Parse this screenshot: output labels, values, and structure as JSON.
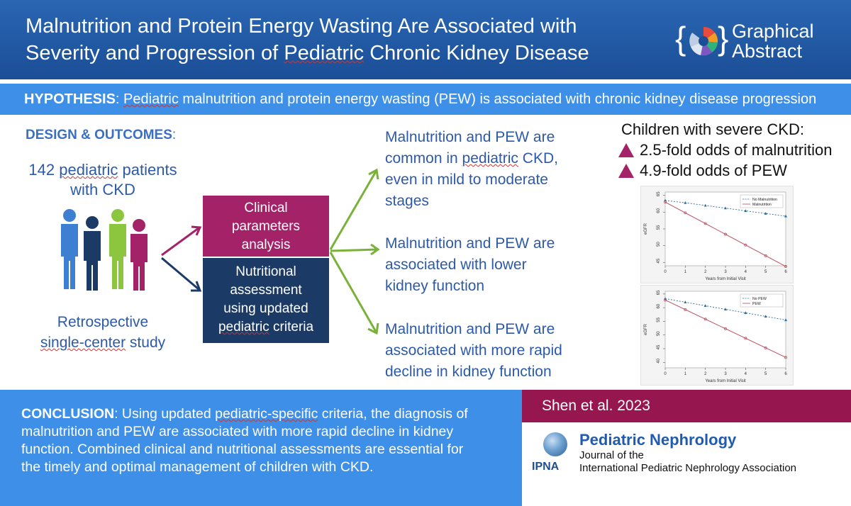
{
  "header": {
    "title_line1": "Malnutrition and Protein Energy Wasting Are Associated with",
    "title_line2_a": "Severity and Progression of ",
    "title_line2_u": "Pediatric",
    "title_line2_b": " Chronic Kidney Disease",
    "logo_line1": "Graphical",
    "logo_line2": "Abstract"
  },
  "hypothesis": {
    "label": "HYPOTHESIS",
    "sep": ": ",
    "u_word": "Pediatric",
    "text": " malnutrition and protein energy wasting (PEW) is associated with chronic kidney disease progression"
  },
  "design": {
    "label": "DESIGN & OUTCOMES",
    "colon": ":",
    "patients_a": "142 ",
    "patients_u": "pediatric",
    "patients_b": " patients",
    "patients_line2": "with CKD",
    "retro_line1": "Retrospective",
    "retro_u": "single-center",
    "retro_b": " study"
  },
  "boxes": {
    "clinical_l1": "Clinical",
    "clinical_l2": "parameters",
    "clinical_l3": "analysis",
    "nutr_l1": "Nutritional",
    "nutr_l2": "assessment",
    "nutr_l3": "using updated",
    "nutr_u": "pediatric",
    "nutr_l4b": " criteria"
  },
  "outcomes": {
    "o1_l1": "Malnutrition and PEW are",
    "o1_l2a": "common in ",
    "o1_l2u": "pediatric",
    "o1_l2b": " CKD,",
    "o1_l3": "even in mild to moderate",
    "o1_l4": "stages",
    "o2_l1": "Malnutrition and PEW are",
    "o2_l2": "associated with lower",
    "o2_l3": "kidney function",
    "o3_l1": "Malnutrition and PEW are",
    "o3_l2": "associated with more rapid",
    "o3_l3": "decline in kidney function"
  },
  "severe": {
    "heading": "Children with severe CKD:",
    "item1": "2.5-fold odds of malnutrition",
    "item2": "4.9-fold odds of PEW"
  },
  "chart_data": [
    {
      "type": "line",
      "xlabel": "Years from Initial Visit",
      "ylabel": "eGFR",
      "x": [
        0,
        1,
        2,
        3,
        4,
        5,
        6
      ],
      "xticks": [
        "0",
        "1",
        "2",
        "3",
        "4",
        "5",
        "6"
      ],
      "yticks": [
        "45",
        "50",
        "55",
        "60",
        "65"
      ],
      "ylim": [
        44,
        66
      ],
      "legend_position": "top-right",
      "series": [
        {
          "name": "No Malnutrition",
          "values": [
            63.5,
            62.8,
            62.0,
            61.2,
            60.4,
            59.6,
            58.8
          ],
          "color": "#2b6c9c",
          "marker": "triangle",
          "dash": true
        },
        {
          "name": "Malnutrition",
          "values": [
            63.0,
            59.8,
            56.6,
            53.4,
            50.2,
            47.0,
            43.8
          ],
          "color": "#b84a5c",
          "marker": "circle",
          "dash": false
        }
      ]
    },
    {
      "type": "line",
      "xlabel": "Years from Initial Visit",
      "ylabel": "eGFR",
      "x": [
        0,
        1,
        2,
        3,
        4,
        5,
        6
      ],
      "xticks": [
        "0",
        "1",
        "2",
        "3",
        "4",
        "5",
        "6"
      ],
      "yticks": [
        "40",
        "45",
        "50",
        "55",
        "60",
        "65"
      ],
      "ylim": [
        38,
        66
      ],
      "legend_position": "top-right",
      "series": [
        {
          "name": "No PEW",
          "values": [
            63.3,
            62.0,
            60.7,
            59.4,
            58.1,
            56.8,
            55.5
          ],
          "color": "#2b6c9c",
          "marker": "triangle",
          "dash": true
        },
        {
          "name": "PEW",
          "values": [
            62.8,
            59.3,
            55.8,
            52.3,
            48.8,
            45.3,
            41.8
          ],
          "color": "#b84a5c",
          "marker": "circle",
          "dash": false
        }
      ]
    }
  ],
  "conclusion": {
    "label": "CONCLUSION",
    "sep": ": Using updated ",
    "u_word": "pediatric-specific",
    "text_a": " criteria, the diagnosis of",
    "line2": "malnutrition and PEW are associated with more rapid decline in kidney",
    "line3": "function. Combined clinical and nutritional assessments are essential for",
    "line4": "the timely and optimal management of children with CKD."
  },
  "citation": {
    "text": "Shen et al. 2023"
  },
  "journal": {
    "name": "Pediatric Nephrology",
    "sub1": "Journal of the",
    "sub2": "International Pediatric Nephrology Association",
    "abbr": "IPNA"
  },
  "colors": {
    "header_blue": "#1b4e96",
    "bar_blue": "#3d8fe8",
    "magenta": "#a42368",
    "navy": "#1c3a66",
    "arrow_green": "#7ab239",
    "citation_bar": "#96174f"
  }
}
